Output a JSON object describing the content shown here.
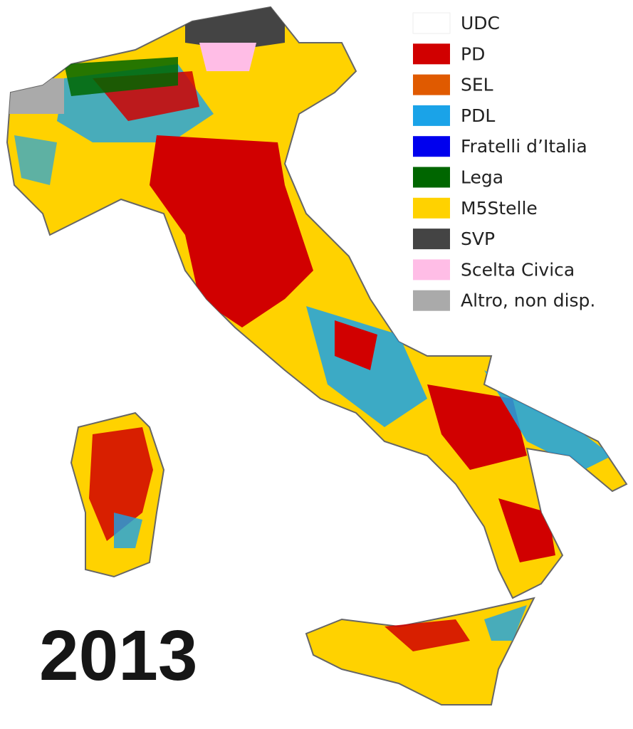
{
  "title": "2013",
  "legend": [
    {
      "label": "UDC",
      "color": "#ffffff"
    },
    {
      "label": "PD",
      "color": "#d10000"
    },
    {
      "label": "SEL",
      "color": "#e05a00"
    },
    {
      "label": "PDL",
      "color": "#1aa3e8"
    },
    {
      "label": "Fratelli d’Italia",
      "color": "#0000ee"
    },
    {
      "label": "Lega",
      "color": "#006600"
    },
    {
      "label": "M5Stelle",
      "color": "#ffd200"
    },
    {
      "label": "SVP",
      "color": "#444444"
    },
    {
      "label": "Scelta Civica",
      "color": "#ffbde6"
    },
    {
      "label": "Altro, non disp.",
      "color": "#aaaaaa"
    }
  ]
}
